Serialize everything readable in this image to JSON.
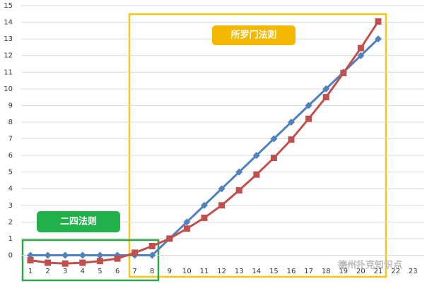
{
  "chart_data": {
    "type": "line",
    "categories": [
      "1",
      "2",
      "3",
      "4",
      "5",
      "6",
      "7",
      "8",
      "9",
      "10",
      "11",
      "12",
      "13",
      "14",
      "15",
      "16",
      "17",
      "18",
      "19",
      "20",
      "21",
      "22",
      "23"
    ],
    "series": [
      {
        "name": "blue",
        "color": "#4f81bd",
        "values": [
          0,
          0,
          0,
          0,
          0,
          0,
          0,
          0,
          1,
          2,
          3,
          4,
          5,
          6,
          7,
          8,
          9,
          10,
          11,
          12,
          13,
          null,
          null
        ]
      },
      {
        "name": "red",
        "color": "#c0504d",
        "values": [
          -0.3,
          -0.45,
          -0.5,
          -0.45,
          -0.35,
          -0.2,
          0.15,
          0.55,
          1.0,
          1.6,
          2.25,
          3.0,
          3.9,
          4.85,
          5.85,
          6.95,
          8.2,
          9.5,
          10.95,
          12.45,
          14.05,
          null,
          null
        ]
      }
    ],
    "ylim": [
      -1,
      15
    ],
    "yticks": [
      0,
      1,
      2,
      3,
      4,
      5,
      6,
      7,
      8,
      9,
      10,
      11,
      12,
      13,
      14,
      15
    ],
    "grid": true,
    "annotations": [
      "所罗门法则",
      "二四法则"
    ],
    "watermark": "德州扑克知识点"
  }
}
